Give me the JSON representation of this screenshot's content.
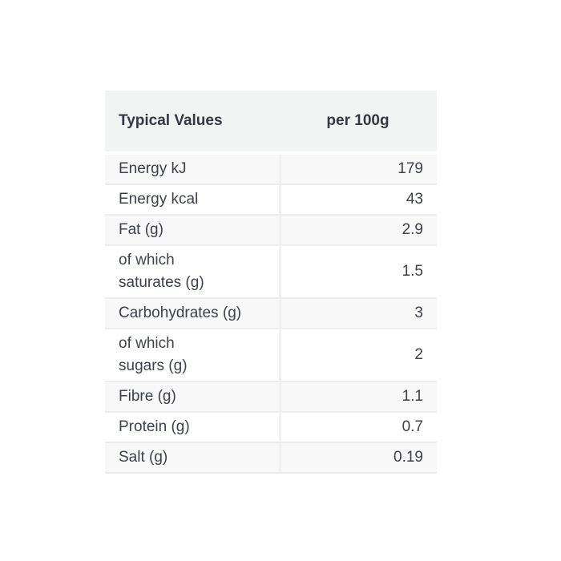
{
  "table": {
    "header": {
      "col1": "Typical Values",
      "col2": "per 100g"
    },
    "rows": [
      {
        "label": "Energy kJ",
        "value": "179"
      },
      {
        "label": "Energy kcal",
        "value": "43"
      },
      {
        "label": "Fat (g)",
        "value": "2.9"
      },
      {
        "label": "of which\nsaturates (g)",
        "value": "1.5"
      },
      {
        "label": "Carbohydrates (g)",
        "value": "3"
      },
      {
        "label": "of which\nsugars (g)",
        "value": "2"
      },
      {
        "label": "Fibre (g)",
        "value": "1.1"
      },
      {
        "label": "Protein (g)",
        "value": "0.7"
      },
      {
        "label": "Salt (g)",
        "value": "0.19"
      }
    ],
    "colors": {
      "header_bg": "#f2f3f3",
      "header_text": "#343840",
      "stripe_bg": "#f8f8f8",
      "row_bg": "#ffffff",
      "border": "#ececec",
      "divider": "#f1f1f1",
      "text": "#3d4148"
    }
  }
}
